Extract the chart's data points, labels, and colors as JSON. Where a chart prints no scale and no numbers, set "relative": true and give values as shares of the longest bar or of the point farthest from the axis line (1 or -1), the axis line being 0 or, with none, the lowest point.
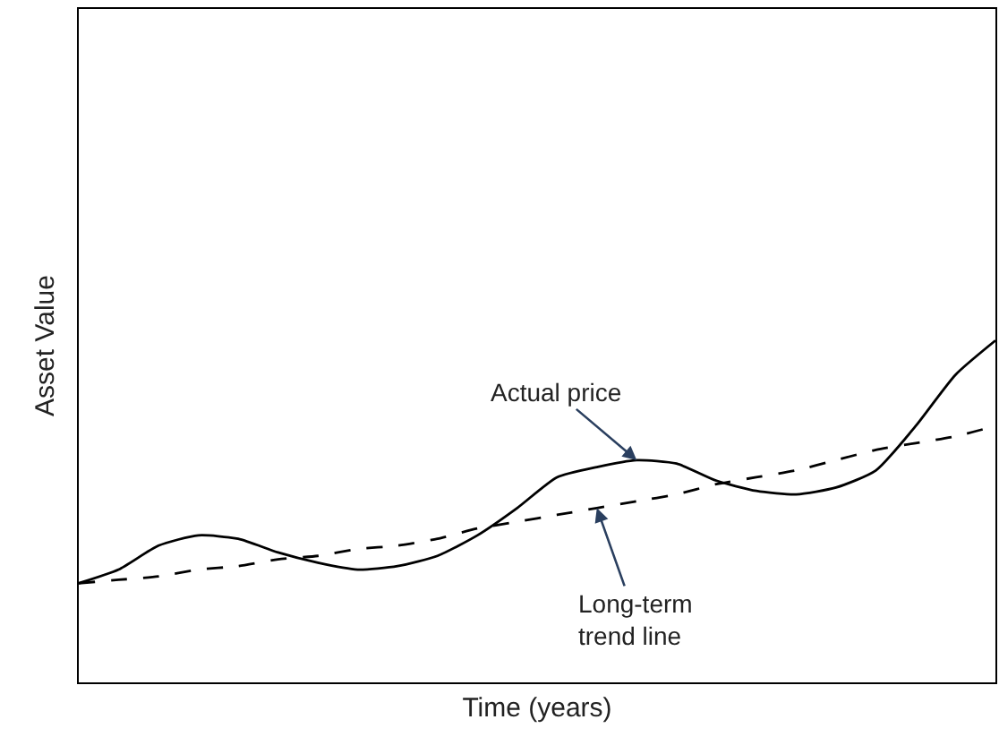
{
  "chart_data": {
    "type": "line",
    "relative": true,
    "xlabel": "Time (years)",
    "ylabel": "Asset Value",
    "categories": [
      null,
      null,
      null,
      null,
      null,
      null,
      null,
      null,
      null,
      null,
      null,
      null,
      null,
      null,
      null,
      null,
      null,
      null,
      null,
      null,
      null,
      null,
      null,
      null
    ],
    "series": [
      {
        "color": "#000000",
        "line_style": "solid",
        "values": [
          0.29,
          0.33,
          0.4,
          0.43,
          0.42,
          0.38,
          0.35,
          0.33,
          0.34,
          0.37,
          0.43,
          0.51,
          0.6,
          0.63,
          0.65,
          0.64,
          0.59,
          0.56,
          0.55,
          0.57,
          0.62,
          0.75,
          0.9,
          1.0
        ]
      },
      {
        "color": "#000000",
        "line_style": "dashed",
        "values": [
          0.29,
          0.3,
          0.31,
          0.33,
          0.34,
          0.36,
          0.37,
          0.39,
          0.4,
          0.42,
          0.45,
          0.47,
          0.49,
          0.51,
          0.53,
          0.55,
          0.58,
          0.6,
          0.62,
          0.65,
          0.68,
          0.7,
          0.72,
          0.75
        ]
      }
    ],
    "annotations": [
      "Actual price",
      "Long-term\ntrend line"
    ],
    "marker": "none",
    "tick_labels": false
  }
}
